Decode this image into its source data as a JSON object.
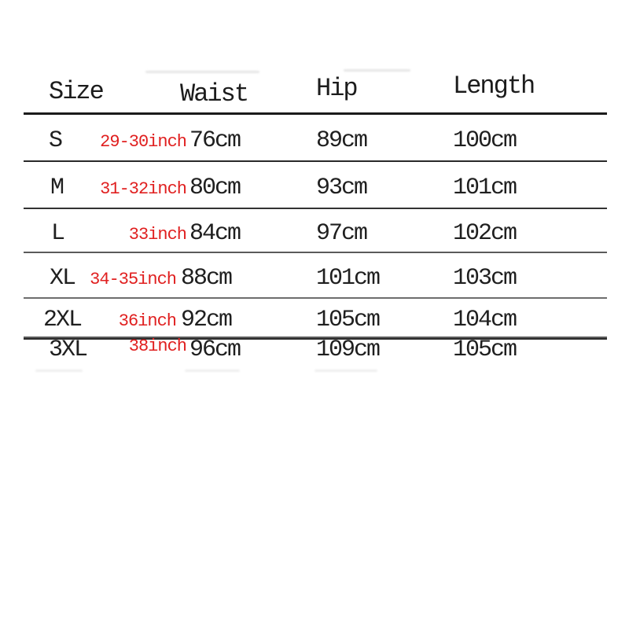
{
  "table": {
    "columns": [
      "Size",
      "Waist",
      "Hip",
      "Length"
    ],
    "rows": [
      {
        "size": "S",
        "waist_inch": "29-30inch",
        "waist_cm": "76cm",
        "hip": "89cm",
        "length": "100cm"
      },
      {
        "size": "M",
        "waist_inch": "31-32inch",
        "waist_cm": "80cm",
        "hip": "93cm",
        "length": "101cm"
      },
      {
        "size": "L",
        "waist_inch": "33inch",
        "waist_cm": "84cm",
        "hip": "97cm",
        "length": "102cm"
      },
      {
        "size": "XL",
        "waist_inch": "34-35inch",
        "waist_cm": "88cm",
        "hip": "101cm",
        "length": "103cm"
      },
      {
        "size": "2XL",
        "waist_inch": "36inch",
        "waist_cm": "92cm",
        "hip": "105cm",
        "length": "104cm"
      },
      {
        "size": "3XL",
        "waist_inch": "38inch",
        "waist_cm": "96cm",
        "hip": "109cm",
        "length": "105cm"
      }
    ],
    "colors": {
      "inch_accent_red": "#e01f1f",
      "text_black": "#1f1f1f",
      "rule_dark": "#1b1b1b"
    }
  }
}
